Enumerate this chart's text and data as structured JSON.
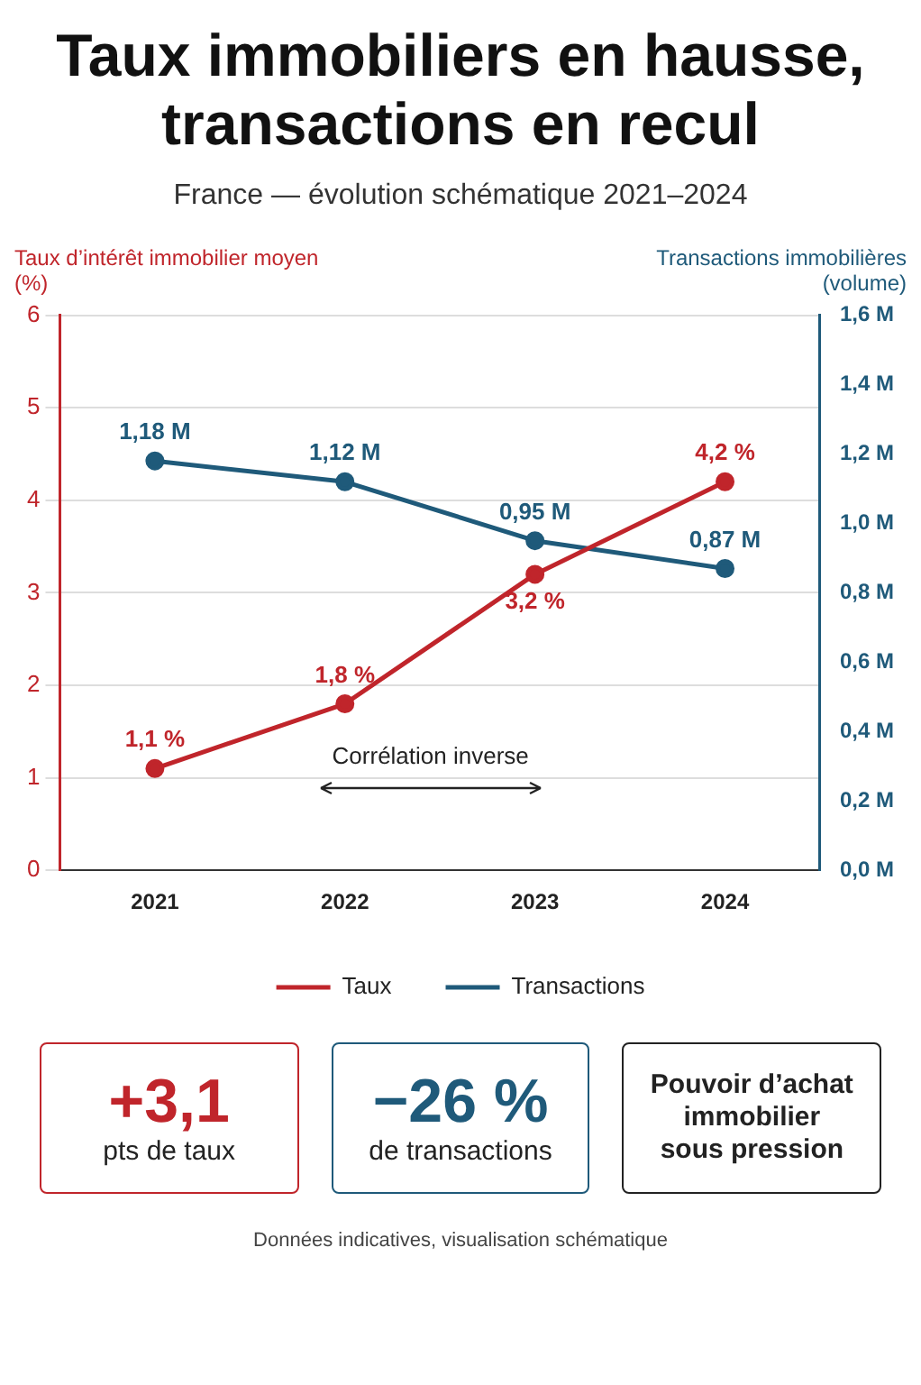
{
  "chart_data": {
    "type": "line",
    "title": "Taux immobiliers en hausse, transactions en recul",
    "subtitle": "France — évolution schématique 2021–2024",
    "ylabel": "Taux d’intérêt immobilier moyen (%)",
    "y2label": "Transactions immobilières (volume)",
    "categories": [
      "2021",
      "2022",
      "2023",
      "2024"
    ],
    "series": [
      {
        "name": "Taux",
        "color": "#c0252b",
        "values": [
          1.1,
          1.8,
          3.2,
          4.2
        ],
        "value_labels": [
          "1,1 %",
          "1,8 %",
          "3,2 %",
          "4,2 %"
        ]
      },
      {
        "name": "Transactions",
        "color": "#1f5a7a",
        "axis": "y2",
        "values": [
          1.18,
          1.12,
          0.95,
          0.87
        ],
        "value_labels": [
          "1,18 M",
          "1,12 M",
          "0,95 M",
          "0,87 M"
        ]
      }
    ],
    "ylim": [
      0,
      6
    ],
    "yticks": [
      0,
      1,
      2,
      3,
      4,
      5,
      6
    ],
    "y2lim": [
      0,
      1.6
    ],
    "y2ticks": [
      {
        "value": 0,
        "label": "0,0 M"
      },
      {
        "value": 0.2,
        "label": "0,2 M"
      },
      {
        "value": 0.4,
        "label": "0,4 M"
      },
      {
        "value": 0.6,
        "label": "0,6 M"
      },
      {
        "value": 0.8,
        "label": "0,8 M"
      },
      {
        "value": 1.0,
        "label": "1,0 M"
      },
      {
        "value": 1.2,
        "label": "1,2 M"
      },
      {
        "value": 1.4,
        "label": "1,4 M"
      },
      {
        "value": 1.6,
        "label": "1,6 M"
      }
    ],
    "grid": "y",
    "legend": "bottom",
    "marker": "circle",
    "line_style": "solid",
    "annotations": [
      "Corrélation inverse",
      "+3,1\npts de taux",
      "−26 %\nde transactions",
      "Pouvoir d’achat\nimmobilier\nsous pression",
      "Données indicatives, visualisation schématique"
    ]
  }
}
